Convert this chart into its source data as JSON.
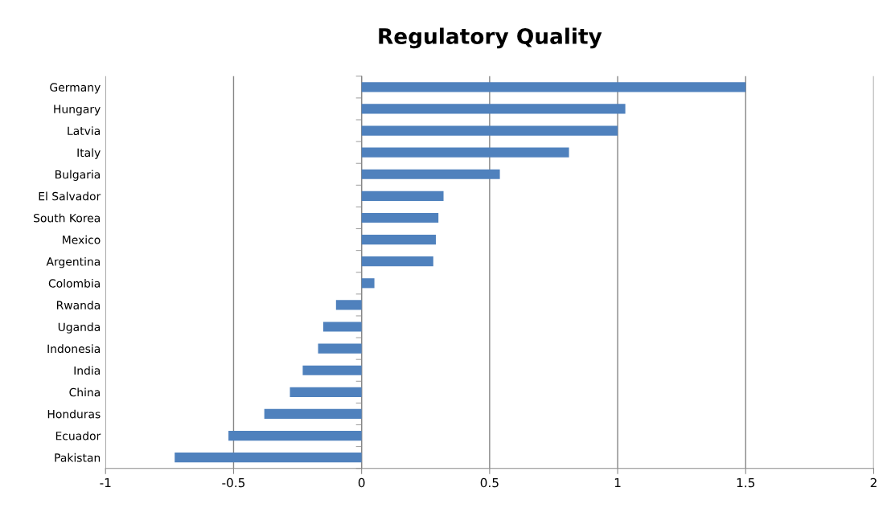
{
  "chart_data": {
    "type": "bar",
    "orientation": "horizontal",
    "title": "Regulatory Quality",
    "categories": [
      "Germany",
      "Hungary",
      "Latvia",
      "Italy",
      "Bulgaria",
      "El Salvador",
      "South Korea",
      "Mexico",
      "Argentina",
      "Colombia",
      "Rwanda",
      "Uganda",
      "Indonesia",
      "India",
      "China",
      "Honduras",
      "Ecuador",
      "Pakistan"
    ],
    "values": [
      1.5,
      1.03,
      1.0,
      0.81,
      0.54,
      0.32,
      0.3,
      0.29,
      0.28,
      0.05,
      -0.1,
      -0.15,
      -0.17,
      -0.23,
      -0.28,
      -0.38,
      -0.52,
      -0.73
    ],
    "color": "#4f81bd",
    "xlim": [
      -1,
      2
    ],
    "xticks": [
      -1,
      -0.5,
      0,
      0.5,
      1,
      1.5,
      2
    ],
    "grid": "x"
  }
}
